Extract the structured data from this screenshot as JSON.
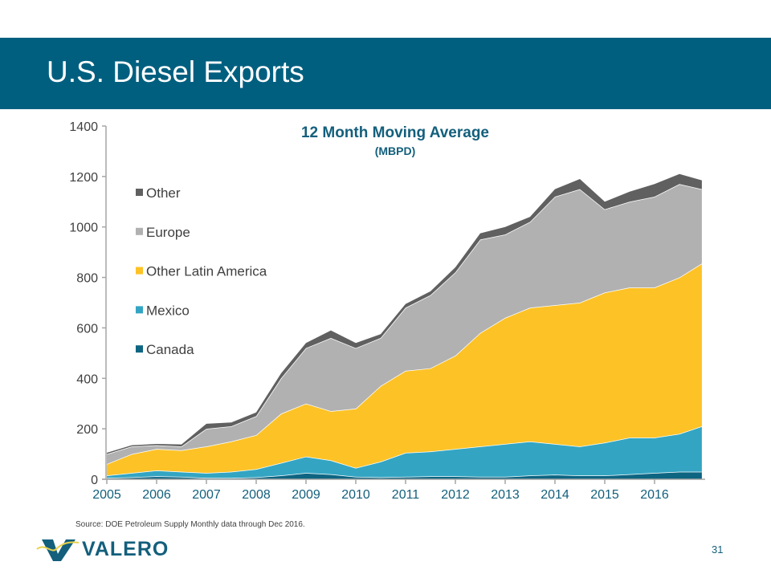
{
  "header": {
    "title": "U.S. Diesel Exports"
  },
  "footer": {
    "source": "Source:  DOE Petroleum Supply Monthly data through Dec 2016.",
    "logo_text": "VALERO",
    "page_number": "31"
  },
  "chart_data": {
    "type": "area",
    "stacked": true,
    "title": "12 Month Moving Average",
    "subtitle": "(MBPD)",
    "xlabel": "",
    "ylabel": "",
    "ylim": [
      0,
      1400
    ],
    "yticks": [
      0,
      200,
      400,
      600,
      800,
      1000,
      1200,
      1400
    ],
    "xlim": [
      2005,
      2017
    ],
    "xticks": [
      "2005",
      "2006",
      "2007",
      "2008",
      "2009",
      "2010",
      "2011",
      "2012",
      "2013",
      "2014",
      "2015",
      "2016"
    ],
    "grid": false,
    "legend_position": "top-left",
    "x": [
      2005.0,
      2005.5,
      2006.0,
      2006.5,
      2007.0,
      2007.5,
      2008.0,
      2008.5,
      2009.0,
      2009.5,
      2010.0,
      2010.5,
      2011.0,
      2011.5,
      2012.0,
      2012.5,
      2013.0,
      2013.5,
      2014.0,
      2014.5,
      2015.0,
      2015.5,
      2016.0,
      2016.5,
      2016.95
    ],
    "series": [
      {
        "name": "Canada",
        "color": "#0e6582",
        "values": [
          5,
          8,
          12,
          10,
          5,
          5,
          8,
          15,
          25,
          20,
          10,
          8,
          10,
          12,
          12,
          10,
          10,
          15,
          18,
          15,
          15,
          20,
          25,
          30,
          30
        ]
      },
      {
        "name": "Mexico",
        "color": "#33a5c3",
        "values": [
          10,
          17,
          23,
          20,
          20,
          25,
          32,
          50,
          65,
          55,
          35,
          62,
          95,
          98,
          108,
          120,
          130,
          135,
          122,
          115,
          130,
          145,
          140,
          150,
          180
        ]
      },
      {
        "name": "Other Latin America",
        "color": "#fdc226",
        "values": [
          45,
          75,
          85,
          85,
          105,
          120,
          135,
          195,
          210,
          195,
          235,
          300,
          325,
          330,
          370,
          450,
          500,
          530,
          550,
          570,
          595,
          595,
          595,
          620,
          645
        ]
      },
      {
        "name": "Europe",
        "color": "#b1b1b1",
        "values": [
          40,
          30,
          15,
          15,
          70,
          60,
          75,
          140,
          220,
          290,
          240,
          190,
          250,
          290,
          330,
          370,
          330,
          340,
          430,
          450,
          330,
          340,
          360,
          370,
          295
        ]
      },
      {
        "name": "Other",
        "color": "#606060",
        "values": [
          5,
          5,
          5,
          8,
          20,
          15,
          15,
          20,
          20,
          30,
          20,
          15,
          15,
          15,
          20,
          25,
          30,
          20,
          30,
          40,
          30,
          40,
          50,
          40,
          35
        ]
      }
    ]
  }
}
